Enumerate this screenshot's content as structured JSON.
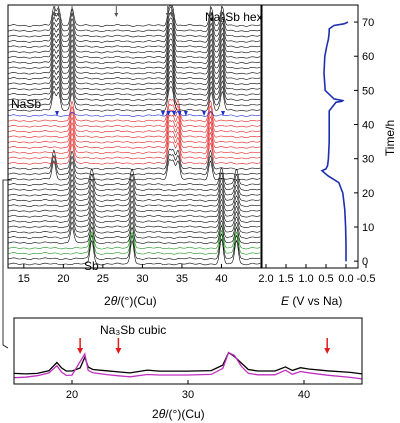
{
  "chart_data": [
    {
      "type": "line",
      "panel": "in situ XRD waterfall",
      "xlabel_prefix": "2",
      "xlabel_theta": "θ",
      "xlabel_suffix": "/(°)(Cu)",
      "xlim": [
        13,
        45
      ],
      "x_ticks": [
        "15",
        "20",
        "25",
        "30",
        "35",
        "40"
      ],
      "labels": {
        "hex": "Na₃Sb hex",
        "nasb": "NaSb",
        "sb": "Sb"
      },
      "colors": {
        "black": "#000000",
        "red": "#e01c1c",
        "blue": "#1c2ed6",
        "green": "#1a8f1a",
        "arrow": "#555555"
      },
      "peak_arrow_positions": [
        18.9,
        19.4,
        21.1,
        26.7,
        33.2,
        33.7,
        38.6,
        40.0
      ],
      "nasb_marker_positions": [
        19.2,
        32.6,
        33.3,
        34.0,
        34.7,
        35.5,
        37.8,
        40.2
      ],
      "sb_peaks": [
        23.6,
        28.7,
        40.0,
        41.9
      ],
      "nasb_peaks": [
        21.1,
        33.4,
        33.9,
        34.5,
        38.6
      ],
      "hex_peaks": [
        18.8,
        19.4,
        21.1,
        33.4,
        33.8,
        38.7,
        40.1
      ]
    },
    {
      "type": "line",
      "panel": "voltage profile",
      "xlabel_prefix": "E",
      "xlabel_suffix": " (V vs Na)",
      "ylabel": "Time/h",
      "xlim": [
        2.1,
        -0.3
      ],
      "ylim": [
        -2,
        75
      ],
      "x_ticks": [
        "2.0",
        "1.5",
        "1.0",
        "0.5",
        "0.0",
        "-0.5"
      ],
      "y_ticks": [
        "0",
        "10",
        "20",
        "30",
        "40",
        "50",
        "60",
        "70"
      ],
      "color": "#1c2fb0",
      "x": [
        0.0,
        0.0,
        0.01,
        0.03,
        0.08,
        0.18,
        0.45,
        0.6,
        0.5,
        0.46,
        0.44,
        0.42,
        0.42,
        0.42,
        0.25,
        0.1,
        0.08,
        0.3,
        0.52,
        0.55,
        0.53,
        0.48,
        0.44,
        0.43,
        0.42,
        0.42,
        0.3,
        0.05,
        -0.05
      ],
      "y": [
        0,
        5,
        10,
        15,
        20,
        23,
        25,
        26.5,
        27,
        28,
        30,
        35,
        40,
        44,
        46.5,
        46.8,
        47,
        47.5,
        50,
        55,
        60,
        63,
        65,
        66,
        67,
        68,
        69,
        69.5,
        70
      ]
    },
    {
      "type": "line",
      "panel": "inset Na3Sb cubic",
      "label": "Na₃Sb cubic",
      "xlabel_prefix": "2",
      "xlabel_theta": "θ",
      "xlabel_suffix": "/(°)(Cu)",
      "xlim": [
        15,
        45
      ],
      "x_ticks": [
        "20",
        "30",
        "40"
      ],
      "arrow_positions": [
        20.7,
        24.0,
        42.0
      ],
      "series": [
        {
          "color": "#000000",
          "x": [
            15,
            16,
            17,
            18,
            18.7,
            19.1,
            19.5,
            20,
            20.7,
            21.1,
            21.4,
            21.8,
            23,
            24,
            25,
            26.5,
            27.5,
            30,
            32,
            33,
            33.5,
            34,
            34.6,
            35.2,
            36,
            37.5,
            38.4,
            39,
            39.7,
            40.4,
            42,
            44,
            45
          ],
          "y": [
            12,
            13,
            14,
            17,
            30,
            20,
            16,
            18,
            24,
            42,
            22,
            17,
            16,
            16,
            15,
            19,
            15,
            14,
            16,
            28,
            52,
            44,
            30,
            17,
            15,
            17,
            26,
            19,
            22,
            18,
            15,
            14,
            13
          ]
        },
        {
          "color": "#c030c0",
          "x": [
            15,
            16,
            17,
            18,
            18.7,
            19.1,
            19.5,
            20,
            21.1,
            21.4,
            21.8,
            23,
            24,
            25,
            26.5,
            27.5,
            30,
            32,
            33,
            33.5,
            34,
            34.6,
            35.2,
            36,
            37.5,
            38.4,
            39,
            39.7,
            40.4,
            42,
            44,
            45
          ],
          "y": [
            6,
            7,
            8,
            11,
            24,
            14,
            10,
            11,
            48,
            16,
            11,
            9,
            9,
            8,
            11,
            8,
            7,
            9,
            22,
            52,
            46,
            24,
            10,
            8,
            10,
            20,
            12,
            15,
            11,
            7,
            5,
            4
          ]
        }
      ]
    }
  ]
}
